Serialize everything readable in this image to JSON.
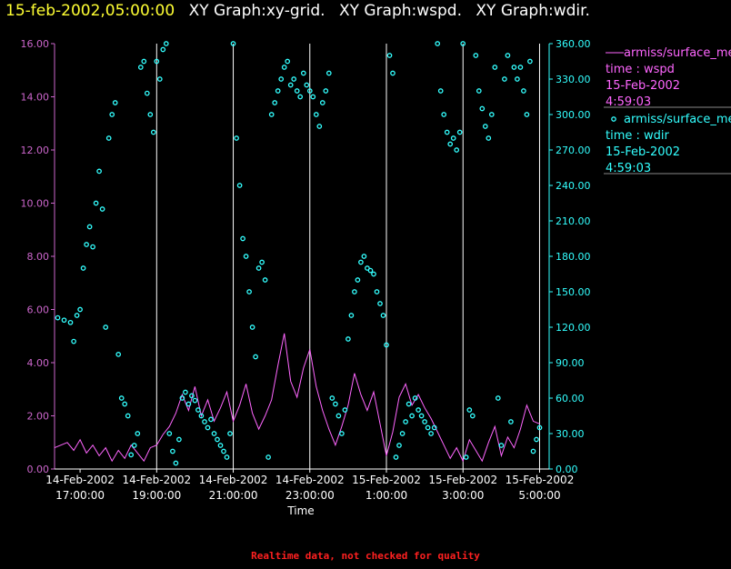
{
  "title": {
    "datetime": "15-feb-2002,05:00:00",
    "graphs": [
      "XY Graph:xy-grid.",
      "XY Graph:wspd.",
      "XY Graph:wdir."
    ]
  },
  "footer": "Realtime data, not checked for quality",
  "colors": {
    "background": "#000000",
    "wspd": "#ff66ff",
    "wspd_axis": "#cc66cc",
    "wdir": "#33ffff",
    "grid": "#ffffff",
    "title_date": "#ffff33"
  },
  "legend": [
    {
      "line1": "armiss/surface_me",
      "line2": "time : wspd",
      "line3": "15-Feb-2002",
      "line4": "4:59:03",
      "color": "#ff66ff",
      "marker": "line"
    },
    {
      "line1": "armiss/surface_me",
      "line2": "time : wdir",
      "line3": "15-Feb-2002",
      "line4": "4:59:03",
      "color": "#33ffff",
      "marker": "circle"
    }
  ],
  "chart_data": {
    "type": "line",
    "xlabel": "Time",
    "x_range": [
      "14-Feb-2002 16:20",
      "15-Feb-2002 05:15"
    ],
    "x_ticks": [
      {
        "time": "14-Feb-2002 17:00",
        "line1": "14-Feb-2002",
        "line2": "17:00:00"
      },
      {
        "time": "14-Feb-2002 19:00",
        "line1": "14-Feb-2002",
        "line2": "19:00:00"
      },
      {
        "time": "14-Feb-2002 21:00",
        "line1": "14-Feb-2002",
        "line2": "21:00:00"
      },
      {
        "time": "14-Feb-2002 23:00",
        "line1": "14-Feb-2002",
        "line2": "23:00:00"
      },
      {
        "time": "15-Feb-2002 01:00",
        "line1": "15-Feb-2002",
        "line2": "1:00:00"
      },
      {
        "time": "15-Feb-2002 03:00",
        "line1": "15-Feb-2002",
        "line2": "3:00:00"
      },
      {
        "time": "15-Feb-2002 05:00",
        "line1": "15-Feb-2002",
        "line2": "5:00:00"
      }
    ],
    "vertical_grid": [
      "14-Feb-2002 19:00",
      "14-Feb-2002 21:00",
      "14-Feb-2002 23:00",
      "15-Feb-2002 01:00",
      "15-Feb-2002 03:00",
      "15-Feb-2002 05:00"
    ],
    "y_left": {
      "range": [
        0,
        16
      ],
      "ticks": [
        "0.00",
        "2.00",
        "4.00",
        "6.00",
        "8.00",
        "10.00",
        "12.00",
        "14.00",
        "16.00"
      ]
    },
    "y_right": {
      "range": [
        0,
        360
      ],
      "ticks": [
        "0.00",
        "30.00",
        "60.00",
        "90.00",
        "120.00",
        "150.00",
        "180.00",
        "210.00",
        "240.00",
        "270.00",
        "300.00",
        "330.00",
        "360.00"
      ]
    },
    "series": [
      {
        "name": "wspd",
        "axis": "left",
        "style": "line",
        "data": [
          [
            "14-Feb-2002 16:20",
            0.8
          ],
          [
            "14-Feb-2002 16:30",
            0.9
          ],
          [
            "14-Feb-2002 16:40",
            1.0
          ],
          [
            "14-Feb-2002 16:50",
            0.7
          ],
          [
            "14-Feb-2002 17:00",
            1.1
          ],
          [
            "14-Feb-2002 17:10",
            0.6
          ],
          [
            "14-Feb-2002 17:20",
            0.9
          ],
          [
            "14-Feb-2002 17:30",
            0.5
          ],
          [
            "14-Feb-2002 17:40",
            0.8
          ],
          [
            "14-Feb-2002 17:50",
            0.3
          ],
          [
            "14-Feb-2002 18:00",
            0.7
          ],
          [
            "14-Feb-2002 18:10",
            0.4
          ],
          [
            "14-Feb-2002 18:20",
            0.9
          ],
          [
            "14-Feb-2002 18:30",
            0.6
          ],
          [
            "14-Feb-2002 18:40",
            0.3
          ],
          [
            "14-Feb-2002 18:50",
            0.8
          ],
          [
            "14-Feb-2002 19:00",
            0.9
          ],
          [
            "14-Feb-2002 19:10",
            1.3
          ],
          [
            "14-Feb-2002 19:20",
            1.6
          ],
          [
            "14-Feb-2002 19:30",
            2.1
          ],
          [
            "14-Feb-2002 19:40",
            2.8
          ],
          [
            "14-Feb-2002 19:50",
            2.2
          ],
          [
            "14-Feb-2002 20:00",
            3.1
          ],
          [
            "14-Feb-2002 20:10",
            2.0
          ],
          [
            "14-Feb-2002 20:20",
            2.6
          ],
          [
            "14-Feb-2002 20:30",
            1.8
          ],
          [
            "14-Feb-2002 20:40",
            2.3
          ],
          [
            "14-Feb-2002 20:50",
            2.9
          ],
          [
            "14-Feb-2002 21:00",
            1.8
          ],
          [
            "14-Feb-2002 21:10",
            2.4
          ],
          [
            "14-Feb-2002 21:20",
            3.2
          ],
          [
            "14-Feb-2002 21:30",
            2.1
          ],
          [
            "14-Feb-2002 21:40",
            1.5
          ],
          [
            "14-Feb-2002 21:50",
            2.0
          ],
          [
            "14-Feb-2002 22:00",
            2.6
          ],
          [
            "14-Feb-2002 22:10",
            3.9
          ],
          [
            "14-Feb-2002 22:20",
            5.1
          ],
          [
            "14-Feb-2002 22:30",
            3.3
          ],
          [
            "14-Feb-2002 22:40",
            2.7
          ],
          [
            "14-Feb-2002 22:50",
            3.8
          ],
          [
            "14-Feb-2002 23:00",
            4.5
          ],
          [
            "14-Feb-2002 23:10",
            3.1
          ],
          [
            "14-Feb-2002 23:20",
            2.2
          ],
          [
            "14-Feb-2002 23:30",
            1.5
          ],
          [
            "14-Feb-2002 23:40",
            0.9
          ],
          [
            "14-Feb-2002 23:50",
            1.6
          ],
          [
            "15-Feb-2002 00:00",
            2.4
          ],
          [
            "15-Feb-2002 00:10",
            3.6
          ],
          [
            "15-Feb-2002 00:20",
            2.8
          ],
          [
            "15-Feb-2002 00:30",
            2.2
          ],
          [
            "15-Feb-2002 00:40",
            2.9
          ],
          [
            "15-Feb-2002 00:50",
            1.7
          ],
          [
            "15-Feb-2002 01:00",
            0.5
          ],
          [
            "15-Feb-2002 01:10",
            1.4
          ],
          [
            "15-Feb-2002 01:20",
            2.7
          ],
          [
            "15-Feb-2002 01:30",
            3.2
          ],
          [
            "15-Feb-2002 01:40",
            2.4
          ],
          [
            "15-Feb-2002 01:50",
            2.8
          ],
          [
            "15-Feb-2002 02:00",
            2.3
          ],
          [
            "15-Feb-2002 02:10",
            1.9
          ],
          [
            "15-Feb-2002 02:20",
            1.4
          ],
          [
            "15-Feb-2002 02:30",
            0.9
          ],
          [
            "15-Feb-2002 02:40",
            0.4
          ],
          [
            "15-Feb-2002 02:50",
            0.8
          ],
          [
            "15-Feb-2002 03:00",
            0.3
          ],
          [
            "15-Feb-2002 03:10",
            1.1
          ],
          [
            "15-Feb-2002 03:20",
            0.7
          ],
          [
            "15-Feb-2002 03:30",
            0.3
          ],
          [
            "15-Feb-2002 03:40",
            1.0
          ],
          [
            "15-Feb-2002 03:50",
            1.6
          ],
          [
            "15-Feb-2002 04:00",
            0.5
          ],
          [
            "15-Feb-2002 04:10",
            1.2
          ],
          [
            "15-Feb-2002 04:20",
            0.8
          ],
          [
            "15-Feb-2002 04:30",
            1.5
          ],
          [
            "15-Feb-2002 04:40",
            2.4
          ],
          [
            "15-Feb-2002 04:50",
            1.8
          ],
          [
            "15-Feb-2002 05:00",
            1.7
          ]
        ]
      },
      {
        "name": "wdir",
        "axis": "right",
        "style": "circles",
        "data": [
          [
            "14-Feb-2002 16:25",
            128
          ],
          [
            "14-Feb-2002 16:35",
            126
          ],
          [
            "14-Feb-2002 16:45",
            124
          ],
          [
            "14-Feb-2002 16:50",
            108
          ],
          [
            "14-Feb-2002 16:55",
            130
          ],
          [
            "14-Feb-2002 17:00",
            135
          ],
          [
            "14-Feb-2002 17:05",
            170
          ],
          [
            "14-Feb-2002 17:10",
            190
          ],
          [
            "14-Feb-2002 17:15",
            205
          ],
          [
            "14-Feb-2002 17:20",
            188
          ],
          [
            "14-Feb-2002 17:25",
            225
          ],
          [
            "14-Feb-2002 17:30",
            252
          ],
          [
            "14-Feb-2002 17:35",
            220
          ],
          [
            "14-Feb-2002 17:40",
            120
          ],
          [
            "14-Feb-2002 17:45",
            280
          ],
          [
            "14-Feb-2002 17:50",
            300
          ],
          [
            "14-Feb-2002 17:55",
            310
          ],
          [
            "14-Feb-2002 18:00",
            97
          ],
          [
            "14-Feb-2002 18:05",
            60
          ],
          [
            "14-Feb-2002 18:10",
            55
          ],
          [
            "14-Feb-2002 18:15",
            45
          ],
          [
            "14-Feb-2002 18:20",
            12
          ],
          [
            "14-Feb-2002 18:25",
            20
          ],
          [
            "14-Feb-2002 18:30",
            30
          ],
          [
            "14-Feb-2002 18:35",
            340
          ],
          [
            "14-Feb-2002 18:40",
            345
          ],
          [
            "14-Feb-2002 18:45",
            318
          ],
          [
            "14-Feb-2002 18:50",
            300
          ],
          [
            "14-Feb-2002 18:55",
            285
          ],
          [
            "14-Feb-2002 19:00",
            345
          ],
          [
            "14-Feb-2002 19:05",
            330
          ],
          [
            "14-Feb-2002 19:10",
            355
          ],
          [
            "14-Feb-2002 19:15",
            360
          ],
          [
            "14-Feb-2002 19:20",
            30
          ],
          [
            "14-Feb-2002 19:25",
            15
          ],
          [
            "14-Feb-2002 19:30",
            5
          ],
          [
            "14-Feb-2002 19:35",
            25
          ],
          [
            "14-Feb-2002 19:40",
            60
          ],
          [
            "14-Feb-2002 19:45",
            65
          ],
          [
            "14-Feb-2002 19:50",
            55
          ],
          [
            "14-Feb-2002 19:55",
            62
          ],
          [
            "14-Feb-2002 20:00",
            58
          ],
          [
            "14-Feb-2002 20:05",
            50
          ],
          [
            "14-Feb-2002 20:10",
            45
          ],
          [
            "14-Feb-2002 20:15",
            40
          ],
          [
            "14-Feb-2002 20:20",
            35
          ],
          [
            "14-Feb-2002 20:25",
            42
          ],
          [
            "14-Feb-2002 20:30",
            30
          ],
          [
            "14-Feb-2002 20:35",
            25
          ],
          [
            "14-Feb-2002 20:40",
            20
          ],
          [
            "14-Feb-2002 20:45",
            15
          ],
          [
            "14-Feb-2002 20:50",
            10
          ],
          [
            "14-Feb-2002 20:55",
            30
          ],
          [
            "14-Feb-2002 21:00",
            360
          ],
          [
            "14-Feb-2002 21:05",
            280
          ],
          [
            "14-Feb-2002 21:10",
            240
          ],
          [
            "14-Feb-2002 21:15",
            195
          ],
          [
            "14-Feb-2002 21:20",
            180
          ],
          [
            "14-Feb-2002 21:25",
            150
          ],
          [
            "14-Feb-2002 21:30",
            120
          ],
          [
            "14-Feb-2002 21:35",
            95
          ],
          [
            "14-Feb-2002 21:40",
            170
          ],
          [
            "14-Feb-2002 21:45",
            175
          ],
          [
            "14-Feb-2002 21:50",
            160
          ],
          [
            "14-Feb-2002 21:55",
            10
          ],
          [
            "14-Feb-2002 22:00",
            300
          ],
          [
            "14-Feb-2002 22:05",
            310
          ],
          [
            "14-Feb-2002 22:10",
            320
          ],
          [
            "14-Feb-2002 22:15",
            330
          ],
          [
            "14-Feb-2002 22:20",
            340
          ],
          [
            "14-Feb-2002 22:25",
            345
          ],
          [
            "14-Feb-2002 22:30",
            325
          ],
          [
            "14-Feb-2002 22:35",
            330
          ],
          [
            "14-Feb-2002 22:40",
            320
          ],
          [
            "14-Feb-2002 22:45",
            315
          ],
          [
            "14-Feb-2002 22:50",
            335
          ],
          [
            "14-Feb-2002 22:55",
            325
          ],
          [
            "14-Feb-2002 23:00",
            320
          ],
          [
            "14-Feb-2002 23:05",
            315
          ],
          [
            "14-Feb-2002 23:10",
            300
          ],
          [
            "14-Feb-2002 23:15",
            290
          ],
          [
            "14-Feb-2002 23:20",
            310
          ],
          [
            "14-Feb-2002 23:25",
            320
          ],
          [
            "14-Feb-2002 23:30",
            335
          ],
          [
            "14-Feb-2002 23:35",
            60
          ],
          [
            "14-Feb-2002 23:40",
            55
          ],
          [
            "14-Feb-2002 23:45",
            45
          ],
          [
            "14-Feb-2002 23:50",
            30
          ],
          [
            "14-Feb-2002 23:55",
            50
          ],
          [
            "15-Feb-2002 00:00",
            110
          ],
          [
            "15-Feb-2002 00:05",
            130
          ],
          [
            "15-Feb-2002 00:10",
            150
          ],
          [
            "15-Feb-2002 00:15",
            160
          ],
          [
            "15-Feb-2002 00:20",
            175
          ],
          [
            "15-Feb-2002 00:25",
            180
          ],
          [
            "15-Feb-2002 00:30",
            170
          ],
          [
            "15-Feb-2002 00:35",
            168
          ],
          [
            "15-Feb-2002 00:40",
            165
          ],
          [
            "15-Feb-2002 00:45",
            150
          ],
          [
            "15-Feb-2002 00:50",
            140
          ],
          [
            "15-Feb-2002 00:55",
            130
          ],
          [
            "15-Feb-2002 01:00",
            105
          ],
          [
            "15-Feb-2002 01:05",
            350
          ],
          [
            "15-Feb-2002 01:10",
            335
          ],
          [
            "15-Feb-2002 01:15",
            10
          ],
          [
            "15-Feb-2002 01:20",
            20
          ],
          [
            "15-Feb-2002 01:25",
            30
          ],
          [
            "15-Feb-2002 01:30",
            40
          ],
          [
            "15-Feb-2002 01:35",
            55
          ],
          [
            "15-Feb-2002 01:40",
            45
          ],
          [
            "15-Feb-2002 01:45",
            60
          ],
          [
            "15-Feb-2002 01:50",
            50
          ],
          [
            "15-Feb-2002 01:55",
            45
          ],
          [
            "15-Feb-2002 02:00",
            40
          ],
          [
            "15-Feb-2002 02:05",
            35
          ],
          [
            "15-Feb-2002 02:10",
            30
          ],
          [
            "15-Feb-2002 02:15",
            35
          ],
          [
            "15-Feb-2002 02:20",
            360
          ],
          [
            "15-Feb-2002 02:25",
            320
          ],
          [
            "15-Feb-2002 02:30",
            300
          ],
          [
            "15-Feb-2002 02:35",
            285
          ],
          [
            "15-Feb-2002 02:40",
            275
          ],
          [
            "15-Feb-2002 02:45",
            280
          ],
          [
            "15-Feb-2002 02:50",
            270
          ],
          [
            "15-Feb-2002 02:55",
            285
          ],
          [
            "15-Feb-2002 03:00",
            360
          ],
          [
            "15-Feb-2002 03:05",
            10
          ],
          [
            "15-Feb-2002 03:10",
            50
          ],
          [
            "15-Feb-2002 03:15",
            45
          ],
          [
            "15-Feb-2002 03:20",
            350
          ],
          [
            "15-Feb-2002 03:25",
            320
          ],
          [
            "15-Feb-2002 03:30",
            305
          ],
          [
            "15-Feb-2002 03:35",
            290
          ],
          [
            "15-Feb-2002 03:40",
            280
          ],
          [
            "15-Feb-2002 03:45",
            300
          ],
          [
            "15-Feb-2002 03:50",
            340
          ],
          [
            "15-Feb-2002 03:55",
            60
          ],
          [
            "15-Feb-2002 04:00",
            20
          ],
          [
            "15-Feb-2002 04:05",
            330
          ],
          [
            "15-Feb-2002 04:10",
            350
          ],
          [
            "15-Feb-2002 04:15",
            40
          ],
          [
            "15-Feb-2002 04:20",
            340
          ],
          [
            "15-Feb-2002 04:25",
            330
          ],
          [
            "15-Feb-2002 04:30",
            340
          ],
          [
            "15-Feb-2002 04:35",
            320
          ],
          [
            "15-Feb-2002 04:40",
            300
          ],
          [
            "15-Feb-2002 04:45",
            345
          ],
          [
            "15-Feb-2002 04:50",
            15
          ],
          [
            "15-Feb-2002 04:55",
            25
          ],
          [
            "15-Feb-2002 05:00",
            35
          ]
        ]
      }
    ]
  }
}
